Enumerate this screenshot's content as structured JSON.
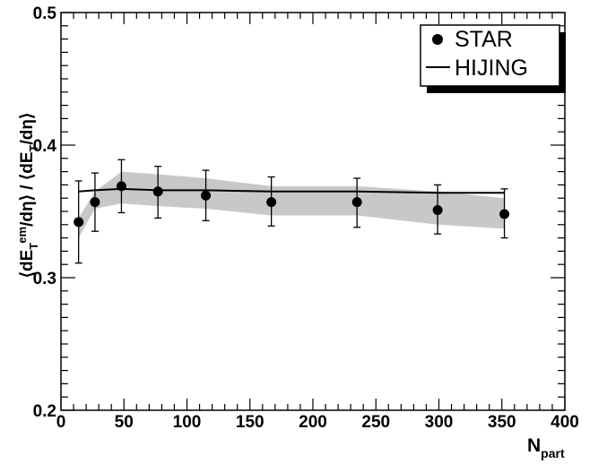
{
  "chart_data": {
    "type": "scatter",
    "xlabel": {
      "main": "N",
      "sub": "part"
    },
    "ylabel": "⟨dE_T^em/dη⟩ / ⟨dE_T/dη⟩",
    "xlim": [
      0,
      400
    ],
    "ylim": [
      0.2,
      0.5
    ],
    "x_ticks": [
      0,
      50,
      100,
      150,
      200,
      250,
      300,
      350,
      400
    ],
    "y_ticks": [
      0.2,
      0.3,
      0.4,
      0.5
    ],
    "x_tick_labels": [
      "0",
      "50",
      "100",
      "150",
      "200",
      "250",
      "300",
      "350",
      "400"
    ],
    "y_tick_labels": [
      "0.2",
      "0.3",
      "0.4",
      "0.5"
    ],
    "grid": false,
    "legend_position": "top-right",
    "series": [
      {
        "name": "STAR",
        "kind": "points-with-errorbars",
        "color": "#000000",
        "x": [
          14,
          27,
          48,
          77,
          115,
          167,
          235,
          299,
          352
        ],
        "y": [
          0.342,
          0.357,
          0.369,
          0.365,
          0.362,
          0.357,
          0.357,
          0.351,
          0.348
        ],
        "err_low": [
          0.031,
          0.022,
          0.02,
          0.02,
          0.019,
          0.018,
          0.019,
          0.018,
          0.018
        ],
        "err_high": [
          0.031,
          0.022,
          0.02,
          0.019,
          0.019,
          0.019,
          0.018,
          0.019,
          0.019
        ]
      },
      {
        "name": "HIJING",
        "kind": "line",
        "color": "#000000",
        "x": [
          14,
          27,
          48,
          77,
          115,
          167,
          235,
          299,
          352
        ],
        "y": [
          0.365,
          0.366,
          0.367,
          0.366,
          0.366,
          0.365,
          0.365,
          0.364,
          0.364
        ]
      }
    ],
    "band": {
      "color": "#c8c8c8",
      "x": [
        14,
        27,
        48,
        77,
        115,
        167,
        235,
        299,
        352
      ],
      "lower": [
        0.33,
        0.352,
        0.356,
        0.354,
        0.352,
        0.347,
        0.347,
        0.34,
        0.337
      ],
      "upper": [
        0.345,
        0.365,
        0.38,
        0.378,
        0.375,
        0.369,
        0.369,
        0.365,
        0.36
      ]
    },
    "legend": [
      {
        "label": "STAR",
        "marker": "filled-circle"
      },
      {
        "label": "HIJING",
        "marker": "line"
      }
    ]
  }
}
